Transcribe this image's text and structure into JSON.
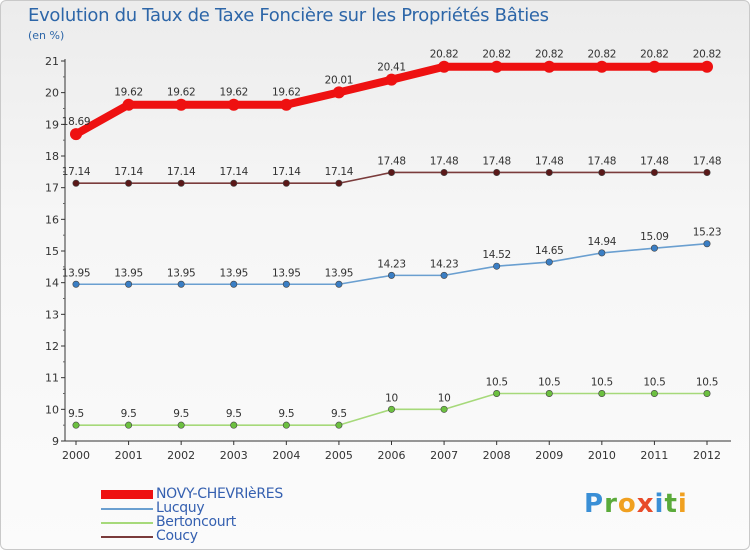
{
  "title": "Evolution du Taux de Taxe Foncière sur les Propriétés Bâties",
  "unit_label": "(en %)",
  "logo": {
    "letters": [
      "P",
      "r",
      "o",
      "x",
      "i",
      "t",
      "i"
    ],
    "colors": [
      "#3a8fd6",
      "#5aaa3a",
      "#f0a020",
      "#e84b2a",
      "#3a8fd6",
      "#5aaa3a",
      "#f0a020"
    ]
  },
  "chart_data": {
    "type": "line",
    "title": "Evolution du Taux de Taxe Foncière sur les Propriétés Bâties",
    "ylabel": "(en %)",
    "xlabel": "",
    "ylim": [
      9,
      21
    ],
    "yticks": [
      9,
      10,
      11,
      12,
      13,
      14,
      15,
      16,
      17,
      18,
      19,
      20,
      21
    ],
    "categories": [
      "2000",
      "2001",
      "2002",
      "2003",
      "2004",
      "2005",
      "2006",
      "2007",
      "2008",
      "2009",
      "2010",
      "2011",
      "2012"
    ],
    "series": [
      {
        "name": "NOVY-CHEVRIèRES",
        "color": "#ee1111",
        "weight": "heavy",
        "values": [
          18.69,
          19.62,
          19.62,
          19.62,
          19.62,
          20.01,
          20.41,
          20.82,
          20.82,
          20.82,
          20.82,
          20.82,
          20.82
        ],
        "labels": [
          "18.69",
          "19.62",
          "19.62",
          "19.62",
          "19.62",
          "20.01",
          "20.41",
          "20.82",
          "20.82",
          "20.82",
          "20.82",
          "20.82",
          "20.82"
        ]
      },
      {
        "name": "Lucquy",
        "color": "#6a9fd0",
        "marker": "#3a7ec4",
        "weight": "light",
        "values": [
          13.95,
          13.95,
          13.95,
          13.95,
          13.95,
          13.95,
          14.23,
          14.23,
          14.52,
          14.65,
          14.94,
          15.09,
          15.23
        ],
        "labels": [
          "13.95",
          "13.95",
          "13.95",
          "13.95",
          "13.95",
          "13.95",
          "14.23",
          "14.23",
          "14.52",
          "14.65",
          "14.94",
          "15.09",
          "15.23"
        ]
      },
      {
        "name": "Bertoncourt",
        "color": "#a6d97a",
        "marker": "#6cc040",
        "weight": "light",
        "values": [
          9.5,
          9.5,
          9.5,
          9.5,
          9.5,
          9.5,
          10,
          10,
          10.5,
          10.5,
          10.5,
          10.5,
          10.5
        ],
        "labels": [
          "9.5",
          "9.5",
          "9.5",
          "9.5",
          "9.5",
          "9.5",
          "10",
          "10",
          "10.5",
          "10.5",
          "10.5",
          "10.5",
          "10.5"
        ]
      },
      {
        "name": "Coucy",
        "color": "#7a3b3b",
        "marker": "#5a1818",
        "weight": "light",
        "values": [
          17.14,
          17.14,
          17.14,
          17.14,
          17.14,
          17.14,
          17.48,
          17.48,
          17.48,
          17.48,
          17.48,
          17.48,
          17.48
        ],
        "labels": [
          "17.14",
          "17.14",
          "17.14",
          "17.14",
          "17.14",
          "17.14",
          "17.48",
          "17.48",
          "17.48",
          "17.48",
          "17.48",
          "17.48",
          "17.48"
        ]
      }
    ],
    "legend_position": "bottom-left",
    "grid": false
  }
}
